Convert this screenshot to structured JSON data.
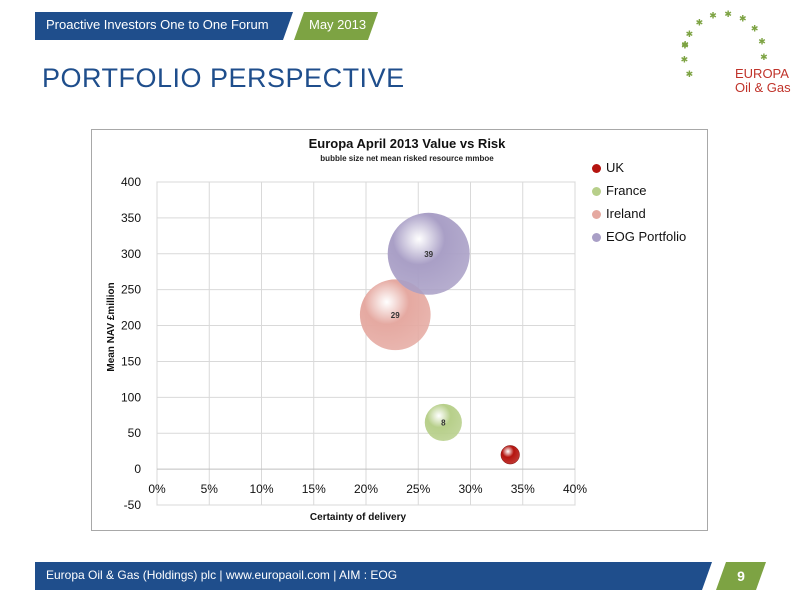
{
  "header": {
    "forum": "Proactive Investors One to One Forum",
    "date": "May 2013"
  },
  "page_title": "PORTFOLIO PERSPECTIVE",
  "logo": {
    "line1": "EUROPA",
    "line2": "Oil & Gas",
    "star_color": "#7da343",
    "text_color": "#c0332a"
  },
  "footer": {
    "text": "Europa Oil & Gas (Holdings) plc  |  www.europaoil.com  | AIM : EOG",
    "page_number": "9"
  },
  "colors": {
    "brand_blue": "#1f4e8c",
    "brand_green": "#7da343"
  },
  "chart_data": {
    "type": "scatter",
    "title": "Europa April 2013 Value vs Risk",
    "subtitle": "bubble size  net  mean risked resource  mmboe",
    "xlabel": "Certainty of delivery",
    "ylabel": "Mean NAV £million",
    "xlim": [
      0,
      0.4
    ],
    "ylim": [
      -50,
      400
    ],
    "x_ticks": [
      "0%",
      "5%",
      "10%",
      "15%",
      "20%",
      "25%",
      "30%",
      "35%",
      "40%"
    ],
    "y_ticks": [
      "400",
      "350",
      "300",
      "250",
      "200",
      "150",
      "100",
      "50",
      "0",
      "-50"
    ],
    "grid": true,
    "legend_position": "right",
    "series": [
      {
        "name": "UK",
        "x": 0.338,
        "y": 20,
        "size": 2,
        "label": "",
        "color": "#b5140f"
      },
      {
        "name": "France",
        "x": 0.274,
        "y": 65,
        "size": 8,
        "label": "8",
        "color": "#b7cf8a"
      },
      {
        "name": "Ireland",
        "x": 0.228,
        "y": 215,
        "size": 29,
        "label": "29",
        "color": "#e5a9a1"
      },
      {
        "name": "EOG Portfolio",
        "x": 0.26,
        "y": 300,
        "size": 39,
        "label": "39",
        "color": "#a99fc6"
      }
    ]
  }
}
